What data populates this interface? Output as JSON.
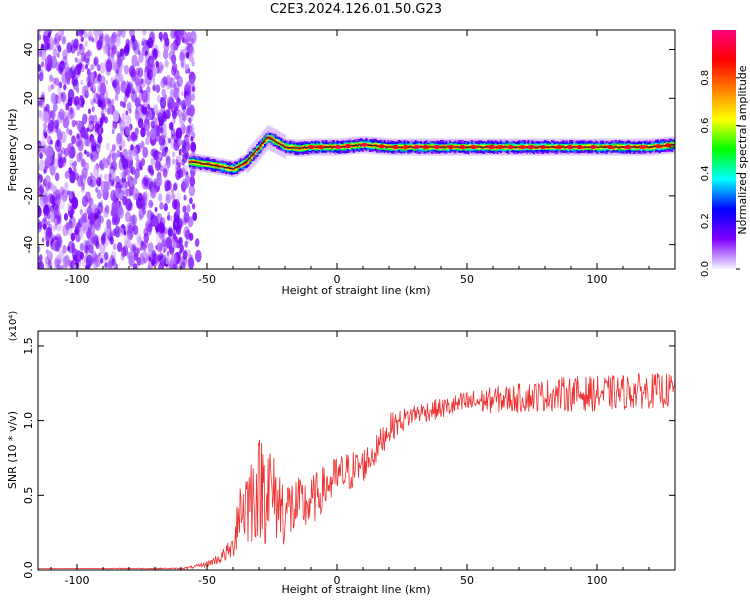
{
  "figure": {
    "title": "C2E3.2024.126.01.50.G23"
  },
  "chart_data": [
    {
      "type": "heatmap",
      "xlabel": "Height of straight line (km)",
      "ylabel": "Frequency (Hz)",
      "xlim": [
        -115,
        130
      ],
      "ylim": [
        -50,
        48
      ],
      "xticks": [
        -100,
        -50,
        0,
        50,
        100
      ],
      "yticks": [
        -40,
        -20,
        0,
        20,
        40
      ],
      "xtick_labels": [
        "-100",
        "-50",
        "0",
        "50",
        "100"
      ],
      "ytick_labels": [
        "-40",
        "-20",
        "0",
        "20",
        "40"
      ],
      "noise_region_x": [
        -115,
        -55
      ],
      "signal_line": {
        "x": [
          -57,
          -50,
          -45,
          -40,
          -35,
          -30,
          -27,
          -25,
          -20,
          -15,
          -10,
          0,
          10,
          20,
          40,
          60,
          80,
          100,
          120,
          130
        ],
        "y": [
          -6,
          -7,
          -8,
          -9,
          -6,
          0,
          4,
          3,
          0,
          -0.5,
          0,
          0,
          1,
          0,
          0,
          0,
          0,
          0,
          0,
          1
        ]
      },
      "colorbar": {
        "label": "Normalized spectral amplitude",
        "range": [
          0,
          1
        ],
        "ticks": [
          0.0,
          0.2,
          0.4,
          0.6,
          0.8
        ],
        "tick_labels": [
          "0.0",
          "0.2",
          "0.4",
          "0.6",
          "0.8"
        ],
        "colormap": [
          "#f4f4ff",
          "#8000ff",
          "#0000ff",
          "#00ffff",
          "#00ff00",
          "#ffff00",
          "#ff8000",
          "#ff0000",
          "#ff0080"
        ]
      }
    },
    {
      "type": "line",
      "xlabel": "Height of straight line (km)",
      "ylabel": "SNR (10 * v/v)",
      "yscale_label": "(x10⁴)",
      "xlim": [
        -115,
        130
      ],
      "ylim": [
        0,
        1.6
      ],
      "xticks": [
        -100,
        -50,
        0,
        50,
        100
      ],
      "yticks": [
        0.0,
        0.5,
        1.0,
        1.5
      ],
      "xtick_labels": [
        "-100",
        "-50",
        "0",
        "50",
        "100"
      ],
      "ytick_labels": [
        "0.0",
        "0.5",
        "1.0",
        "1.5"
      ],
      "series": [
        {
          "color": "#f03030",
          "x": [
            -115,
            -60,
            -55,
            -50,
            -45,
            -40,
            -38,
            -35,
            -30,
            -27,
            -25,
            -20,
            -15,
            -10,
            -5,
            0,
            5,
            10,
            15,
            20,
            25,
            30,
            40,
            50,
            60,
            70,
            80,
            90,
            100,
            110,
            120,
            130
          ],
          "y": [
            0.01,
            0.01,
            0.02,
            0.04,
            0.08,
            0.15,
            0.4,
            0.45,
            0.55,
            0.6,
            0.5,
            0.4,
            0.42,
            0.45,
            0.55,
            0.62,
            0.66,
            0.7,
            0.8,
            0.95,
            1.0,
            1.05,
            1.08,
            1.12,
            1.14,
            1.15,
            1.17,
            1.18,
            1.18,
            1.19,
            1.2,
            1.2
          ],
          "noise": [
            0,
            0.005,
            0.01,
            0.02,
            0.04,
            0.08,
            0.25,
            0.3,
            0.35,
            0.45,
            0.3,
            0.25,
            0.2,
            0.18,
            0.15,
            0.15,
            0.14,
            0.12,
            0.1,
            0.1,
            0.08,
            0.07,
            0.07,
            0.08,
            0.09,
            0.1,
            0.11,
            0.12,
            0.12,
            0.12,
            0.12,
            0.12
          ]
        }
      ]
    }
  ]
}
